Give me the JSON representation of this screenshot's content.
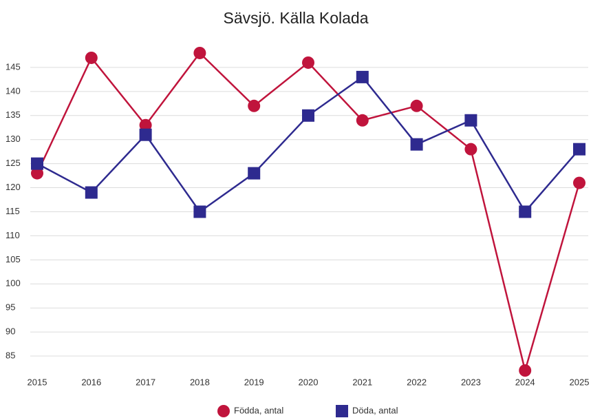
{
  "chart_data": {
    "type": "line",
    "title": "Sävsjö. Källa Kolada",
    "categories": [
      "2015",
      "2016",
      "2017",
      "2018",
      "2019",
      "2020",
      "2021",
      "2022",
      "2023",
      "2024",
      "2025"
    ],
    "series": [
      {
        "name": "Födda, antal",
        "color": "#c0143c",
        "marker": "circle",
        "values": [
          123,
          147,
          133,
          148,
          137,
          146,
          134,
          137,
          128,
          82,
          121
        ]
      },
      {
        "name": "Döda, antal",
        "color": "#2e2a8f",
        "marker": "square",
        "values": [
          125,
          119,
          131,
          115,
          123,
          135,
          143,
          129,
          134,
          115,
          128
        ]
      }
    ],
    "ylim": [
      82,
      150
    ],
    "yticks": [
      85,
      90,
      95,
      100,
      105,
      110,
      115,
      120,
      125,
      130,
      135,
      140,
      145
    ],
    "grid": true,
    "legend": "bottom"
  }
}
